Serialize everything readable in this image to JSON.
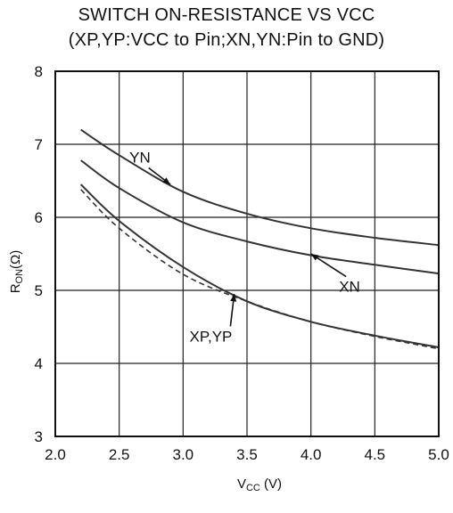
{
  "chart_data": {
    "type": "line",
    "title": "SWITCH ON-RESISTANCE  VS  VCC",
    "subtitle": "(XP,YP:VCC to Pin;XN,YN:Pin to GND)",
    "xlabel_main": "V",
    "xlabel_sub": "CC",
    "xlabel_unit": " (V)",
    "ylabel_main": "R",
    "ylabel_sub": "ON",
    "ylabel_unit": "(Ω)",
    "xlim": [
      2.0,
      5.0
    ],
    "ylim": [
      3,
      8
    ],
    "xticks": [
      2.0,
      2.5,
      3.0,
      3.5,
      4.0,
      4.5,
      5.0
    ],
    "xtick_labels": [
      "2.0",
      "2.5",
      "3.0",
      "3.5",
      "4.0",
      "4.5",
      "5.0"
    ],
    "yticks": [
      3,
      4,
      5,
      6,
      7,
      8
    ],
    "ytick_labels": [
      "3",
      "4",
      "5",
      "6",
      "7",
      "8"
    ],
    "grid": true,
    "series": [
      {
        "name": "YN",
        "style": "solid",
        "x": [
          2.2,
          2.5,
          3.0,
          3.5,
          4.0,
          4.5,
          5.0
        ],
        "y": [
          7.2,
          6.85,
          6.35,
          6.05,
          5.85,
          5.72,
          5.62
        ]
      },
      {
        "name": "XN",
        "style": "solid",
        "x": [
          2.2,
          2.5,
          3.0,
          3.5,
          4.0,
          4.5,
          5.0
        ],
        "y": [
          6.78,
          6.4,
          5.93,
          5.67,
          5.48,
          5.35,
          5.23
        ]
      },
      {
        "name": "XP,YP",
        "style": "solid",
        "x": [
          2.2,
          2.5,
          3.0,
          3.5,
          4.0,
          4.5,
          5.0
        ],
        "y": [
          6.45,
          5.95,
          5.32,
          4.85,
          4.57,
          4.38,
          4.22
        ]
      },
      {
        "name": "XP,YP",
        "style": "dashed",
        "x": [
          2.2,
          2.5,
          3.0,
          3.5,
          4.0,
          4.5,
          5.0
        ],
        "y": [
          6.38,
          5.85,
          5.22,
          4.85,
          4.57,
          4.37,
          4.2
        ]
      }
    ],
    "annotations": [
      {
        "text": "YN",
        "x": 2.58,
        "y": 6.75,
        "arrow_to": [
          2.9,
          6.45
        ]
      },
      {
        "text": "XN",
        "x": 4.22,
        "y": 4.98,
        "arrow_to": [
          4.0,
          5.5
        ]
      },
      {
        "text": "XP,YP",
        "x": 3.05,
        "y": 4.3,
        "arrow_to": [
          3.4,
          4.95
        ]
      }
    ]
  }
}
